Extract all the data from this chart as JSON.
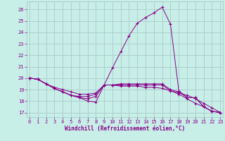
{
  "xlabel": "Windchill (Refroidissement éolien,°C)",
  "background_color": "#c8eee8",
  "grid_color": "#a8ccc8",
  "line_color": "#880088",
  "x_ticks": [
    0,
    1,
    2,
    3,
    4,
    5,
    6,
    7,
    8,
    9,
    10,
    11,
    12,
    13,
    14,
    15,
    16,
    17,
    18,
    19,
    20,
    21,
    22,
    23
  ],
  "y_ticks": [
    17,
    18,
    19,
    20,
    21,
    22,
    23,
    24,
    25,
    26
  ],
  "xlim": [
    -0.3,
    23.3
  ],
  "ylim": [
    16.6,
    26.7
  ],
  "curves": [
    [
      20.0,
      19.9,
      19.5,
      19.1,
      18.8,
      18.5,
      18.3,
      18.0,
      17.9,
      19.4,
      20.9,
      22.3,
      23.7,
      24.8,
      25.3,
      25.7,
      26.2,
      24.7,
      18.9,
      18.3,
      18.3,
      17.5,
      17.1,
      17.0
    ],
    [
      20.0,
      19.9,
      19.5,
      19.1,
      18.8,
      18.5,
      18.3,
      18.2,
      18.4,
      19.4,
      19.4,
      19.5,
      19.5,
      19.5,
      19.5,
      19.5,
      19.5,
      19.0,
      18.8,
      18.3,
      18.3,
      17.5,
      17.1,
      17.0
    ],
    [
      20.0,
      19.9,
      19.5,
      19.1,
      18.8,
      18.5,
      18.4,
      18.4,
      18.6,
      19.4,
      19.4,
      19.4,
      19.4,
      19.4,
      19.4,
      19.4,
      19.4,
      18.9,
      18.6,
      18.2,
      17.8,
      17.5,
      17.1,
      17.0
    ],
    [
      20.0,
      19.9,
      19.5,
      19.2,
      19.0,
      18.8,
      18.6,
      18.6,
      18.7,
      19.4,
      19.4,
      19.3,
      19.3,
      19.3,
      19.2,
      19.2,
      19.1,
      18.9,
      18.7,
      18.5,
      18.2,
      17.8,
      17.4,
      17.0
    ]
  ]
}
